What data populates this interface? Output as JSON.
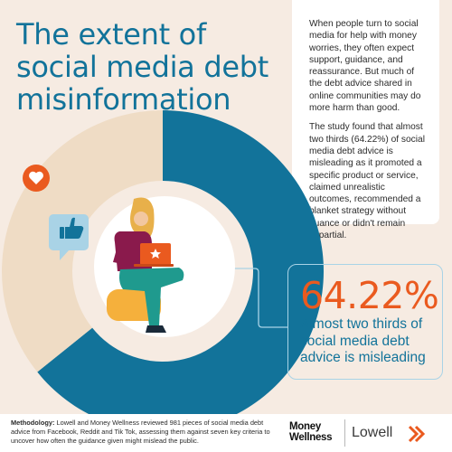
{
  "title_lines": [
    "The extent of",
    "social media debt",
    "misinformation"
  ],
  "paragraphs": [
    "When people turn to social media for help with money worries, they often expect support, guidance, and reassurance. But much of the debt advice shared in online communities may do more harm than good.",
    "The study found that almost two thirds (64.22%) of social media debt advice is misleading as it promoted a specific product or service, claimed unrealistic outcomes, recommended a blanket strategy without nuance or didn't remain impartial."
  ],
  "stat": {
    "value": "64.22%",
    "caption": "Almost two thirds of social media debt advice is misleading"
  },
  "footer": {
    "methodology_label": "Methodology:",
    "methodology_text": " Lowell and Money Wellness reviewed 981 pieces of social media debt advice from Facebook, Reddit and Tik Tok, assessing them against seven key criteria to uncover how often the guidance given might mislead the public.",
    "logo_money_wellness": [
      "Money",
      "Wellness"
    ],
    "logo_lowell": "Lowell"
  },
  "icons": [
    "heart-icon",
    "thumbs-up-icon",
    "laptop-star-icon",
    "person-illustration",
    "arrow-chevron-icon"
  ],
  "colors": {
    "misleading": "#12739a",
    "not_misleading": "#efdcc5",
    "accent": "#ea5a1f",
    "background": "#f6ebe2"
  },
  "chart_data": {
    "type": "pie",
    "style": "donut",
    "slices": [
      {
        "value": 64.22,
        "color": "#12739a"
      },
      {
        "value": 35.78,
        "color": "#efdcc5"
      }
    ]
  }
}
